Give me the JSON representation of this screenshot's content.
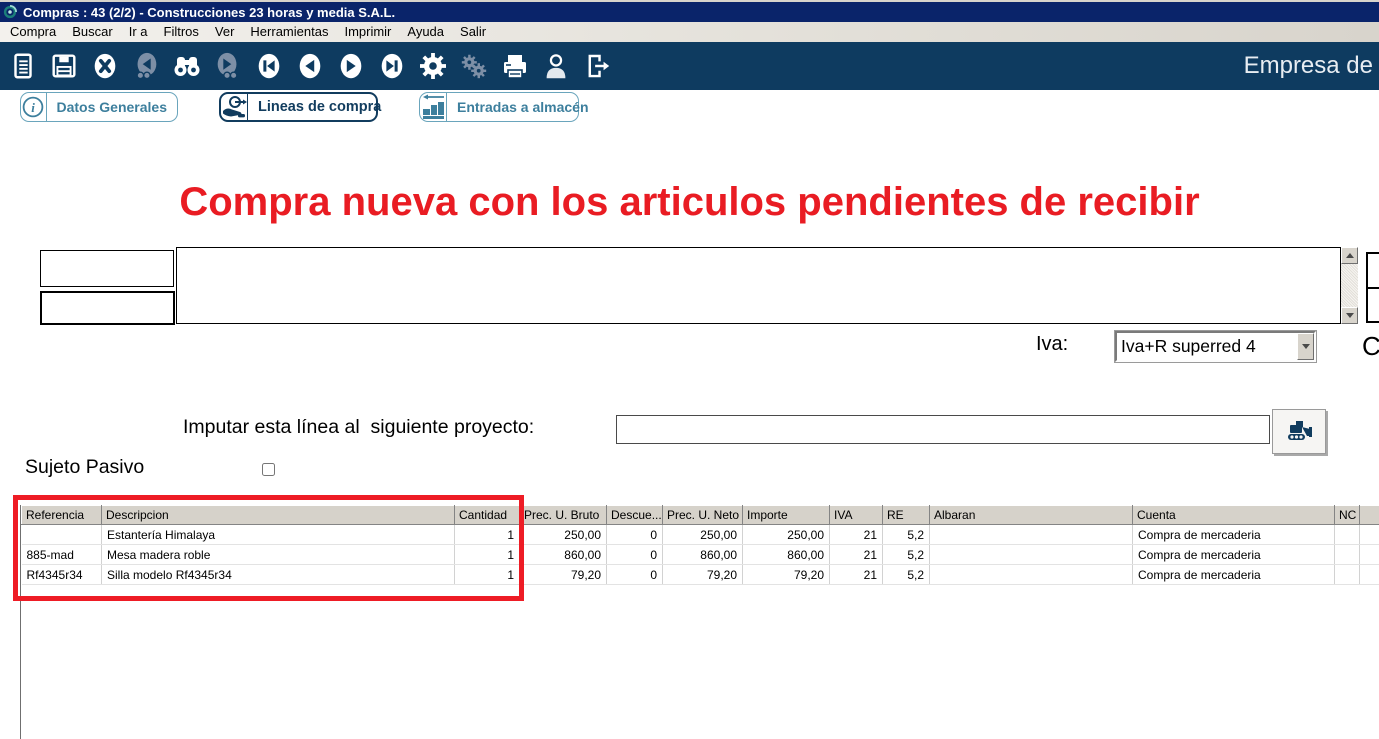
{
  "window": {
    "title": "Compras : 43 (2/2) - Construcciones 23 horas y media S.A.L.",
    "icon": "app-swirl-icon"
  },
  "menu_bar": {
    "items": [
      "Compra",
      "Buscar",
      "Ir a",
      "Filtros",
      "Ver",
      "Herramientas",
      "Imprimir",
      "Ayuda",
      "Salir"
    ]
  },
  "toolbar": {
    "company_label": "Empresa de",
    "buttons": [
      {
        "icon": "new-document-icon",
        "disabled": false
      },
      {
        "icon": "save-icon",
        "disabled": false
      },
      {
        "icon": "cancel-icon",
        "disabled": false
      },
      {
        "icon": "find-previous-icon",
        "disabled": true
      },
      {
        "icon": "binoculars-search-icon",
        "disabled": false
      },
      {
        "icon": "find-next-icon",
        "disabled": true
      },
      {
        "icon": "first-record-icon",
        "disabled": false
      },
      {
        "icon": "previous-record-icon",
        "disabled": false
      },
      {
        "icon": "next-record-icon",
        "disabled": false
      },
      {
        "icon": "last-record-icon",
        "disabled": false
      },
      {
        "icon": "gear-icon",
        "disabled": false
      },
      {
        "icon": "gears-icon",
        "disabled": true
      },
      {
        "icon": "printer-icon",
        "disabled": false
      },
      {
        "icon": "user-icon",
        "disabled": false
      },
      {
        "icon": "exit-door-icon",
        "disabled": false
      }
    ]
  },
  "tabs": [
    {
      "label": "Datos Generales",
      "icon": "info-icon",
      "active": false
    },
    {
      "label": "Lineas de compra",
      "icon": "purchase-lines-icon",
      "active": true
    },
    {
      "label": "Entradas a almacén",
      "icon": "warehouse-entries-icon",
      "active": false
    }
  ],
  "heading": {
    "text": "Compra nueva con los articulos pendientes de recibir",
    "color": "#e91c23"
  },
  "form": {
    "iva_label": "Iva:",
    "iva_value": "Iva+R superred 4",
    "right_clipped_label": "C",
    "project_label": "Imputar esta línea al  siguiente proyecto:",
    "project_value": "",
    "sujeto_pasivo_label": "Sujeto Pasivo",
    "sujeto_pasivo_checked": false
  },
  "grid": {
    "columns": [
      "Referencia",
      "Descripcion",
      "Cantidad",
      "Prec. U. Bruto",
      "Descue...",
      "Prec. U. Neto",
      "Importe",
      "IVA",
      "RE",
      "Albaran",
      "Cuenta",
      "NC",
      ""
    ],
    "rows": [
      [
        "",
        "Estantería Himalaya",
        "1",
        "250,00",
        "0",
        "250,00",
        "250,00",
        "21",
        "5,2",
        "",
        "Compra de mercaderia",
        "",
        ""
      ],
      [
        "885-mad",
        "Mesa madera roble",
        "1",
        "860,00",
        "0",
        "860,00",
        "860,00",
        "21",
        "5,2",
        "",
        "Compra de mercaderia",
        "",
        ""
      ],
      [
        "Rf4345r34",
        "Silla modelo Rf4345r34",
        "1",
        "79,20",
        "0",
        "79,20",
        "79,20",
        "21",
        "5,2",
        "",
        "Compra de mercaderia",
        "",
        ""
      ]
    ]
  },
  "colors": {
    "titlebar_navy": "#0a246a",
    "toolbar_navy": "#0e3b60",
    "tab_teal": "#3d7f9d",
    "active_tab_navy": "#113c5e",
    "highlight_red": "#ee1c25",
    "grid_header_gray": "#d6d2ca"
  }
}
